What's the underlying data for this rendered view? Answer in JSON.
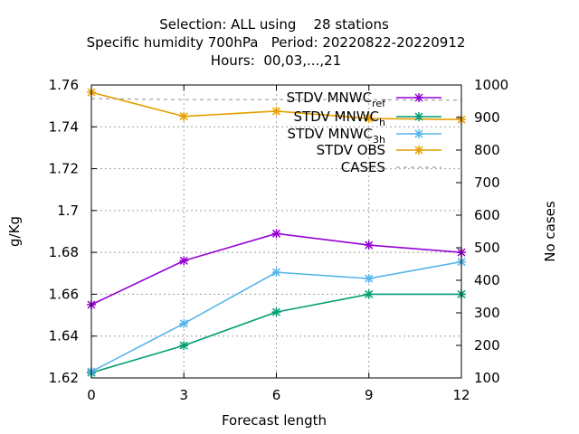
{
  "chart_data": {
    "type": "line",
    "title_lines": [
      "Selection: ALL using    28 stations",
      "Specific humidity 700hPa   Period: 20220822-20220912",
      "Hours:  00,03,...,21"
    ],
    "xlabel": "Forecast length",
    "ylabel": "g/Kg",
    "y2label": "No cases",
    "x": [
      0,
      3,
      6,
      9,
      12
    ],
    "xticks": [
      "0",
      "3",
      "6",
      "9",
      "12"
    ],
    "xlim": [
      0,
      12
    ],
    "ylim": [
      1.62,
      1.76
    ],
    "yticks": [
      "1.62",
      "1.64",
      "1.66",
      "1.68",
      "1.7",
      "1.72",
      "1.74",
      "1.76"
    ],
    "y2lim": [
      100,
      1000
    ],
    "y2ticks": [
      "100",
      "200",
      "300",
      "400",
      "500",
      "600",
      "700",
      "800",
      "900",
      "1000"
    ],
    "grid": true,
    "legend_position": "top-right",
    "series": [
      {
        "name": "STDV MNWC_ref",
        "legend_main": "STDV MNWC",
        "legend_sub": "ref",
        "color": "#9400d3",
        "axis": "y",
        "values": [
          1.655,
          1.676,
          1.689,
          1.6835,
          1.68
        ]
      },
      {
        "name": "STDV MNWC_h",
        "legend_main": "STDV MNWC",
        "legend_sub": "h",
        "color": "#009e73",
        "axis": "y",
        "values": [
          1.6225,
          1.6355,
          1.6515,
          1.66,
          1.66
        ]
      },
      {
        "name": "STDV MNWC_3h",
        "legend_main": "STDV MNWC",
        "legend_sub": "3h",
        "color": "#56b4e9",
        "axis": "y",
        "values": [
          1.623,
          1.646,
          1.6705,
          1.6675,
          1.6755
        ]
      },
      {
        "name": "STDV OBS",
        "legend_main": "STDV OBS",
        "legend_sub": "",
        "color": "#e69f00",
        "axis": "y",
        "values": [
          1.7565,
          1.745,
          1.7475,
          1.744,
          1.7435
        ]
      },
      {
        "name": "CASES",
        "legend_main": "CASES",
        "legend_sub": "",
        "color": "#a0a0a0",
        "axis": "y2",
        "dashed": true,
        "values": [
          958,
          955,
          955,
          955,
          953
        ]
      }
    ]
  }
}
